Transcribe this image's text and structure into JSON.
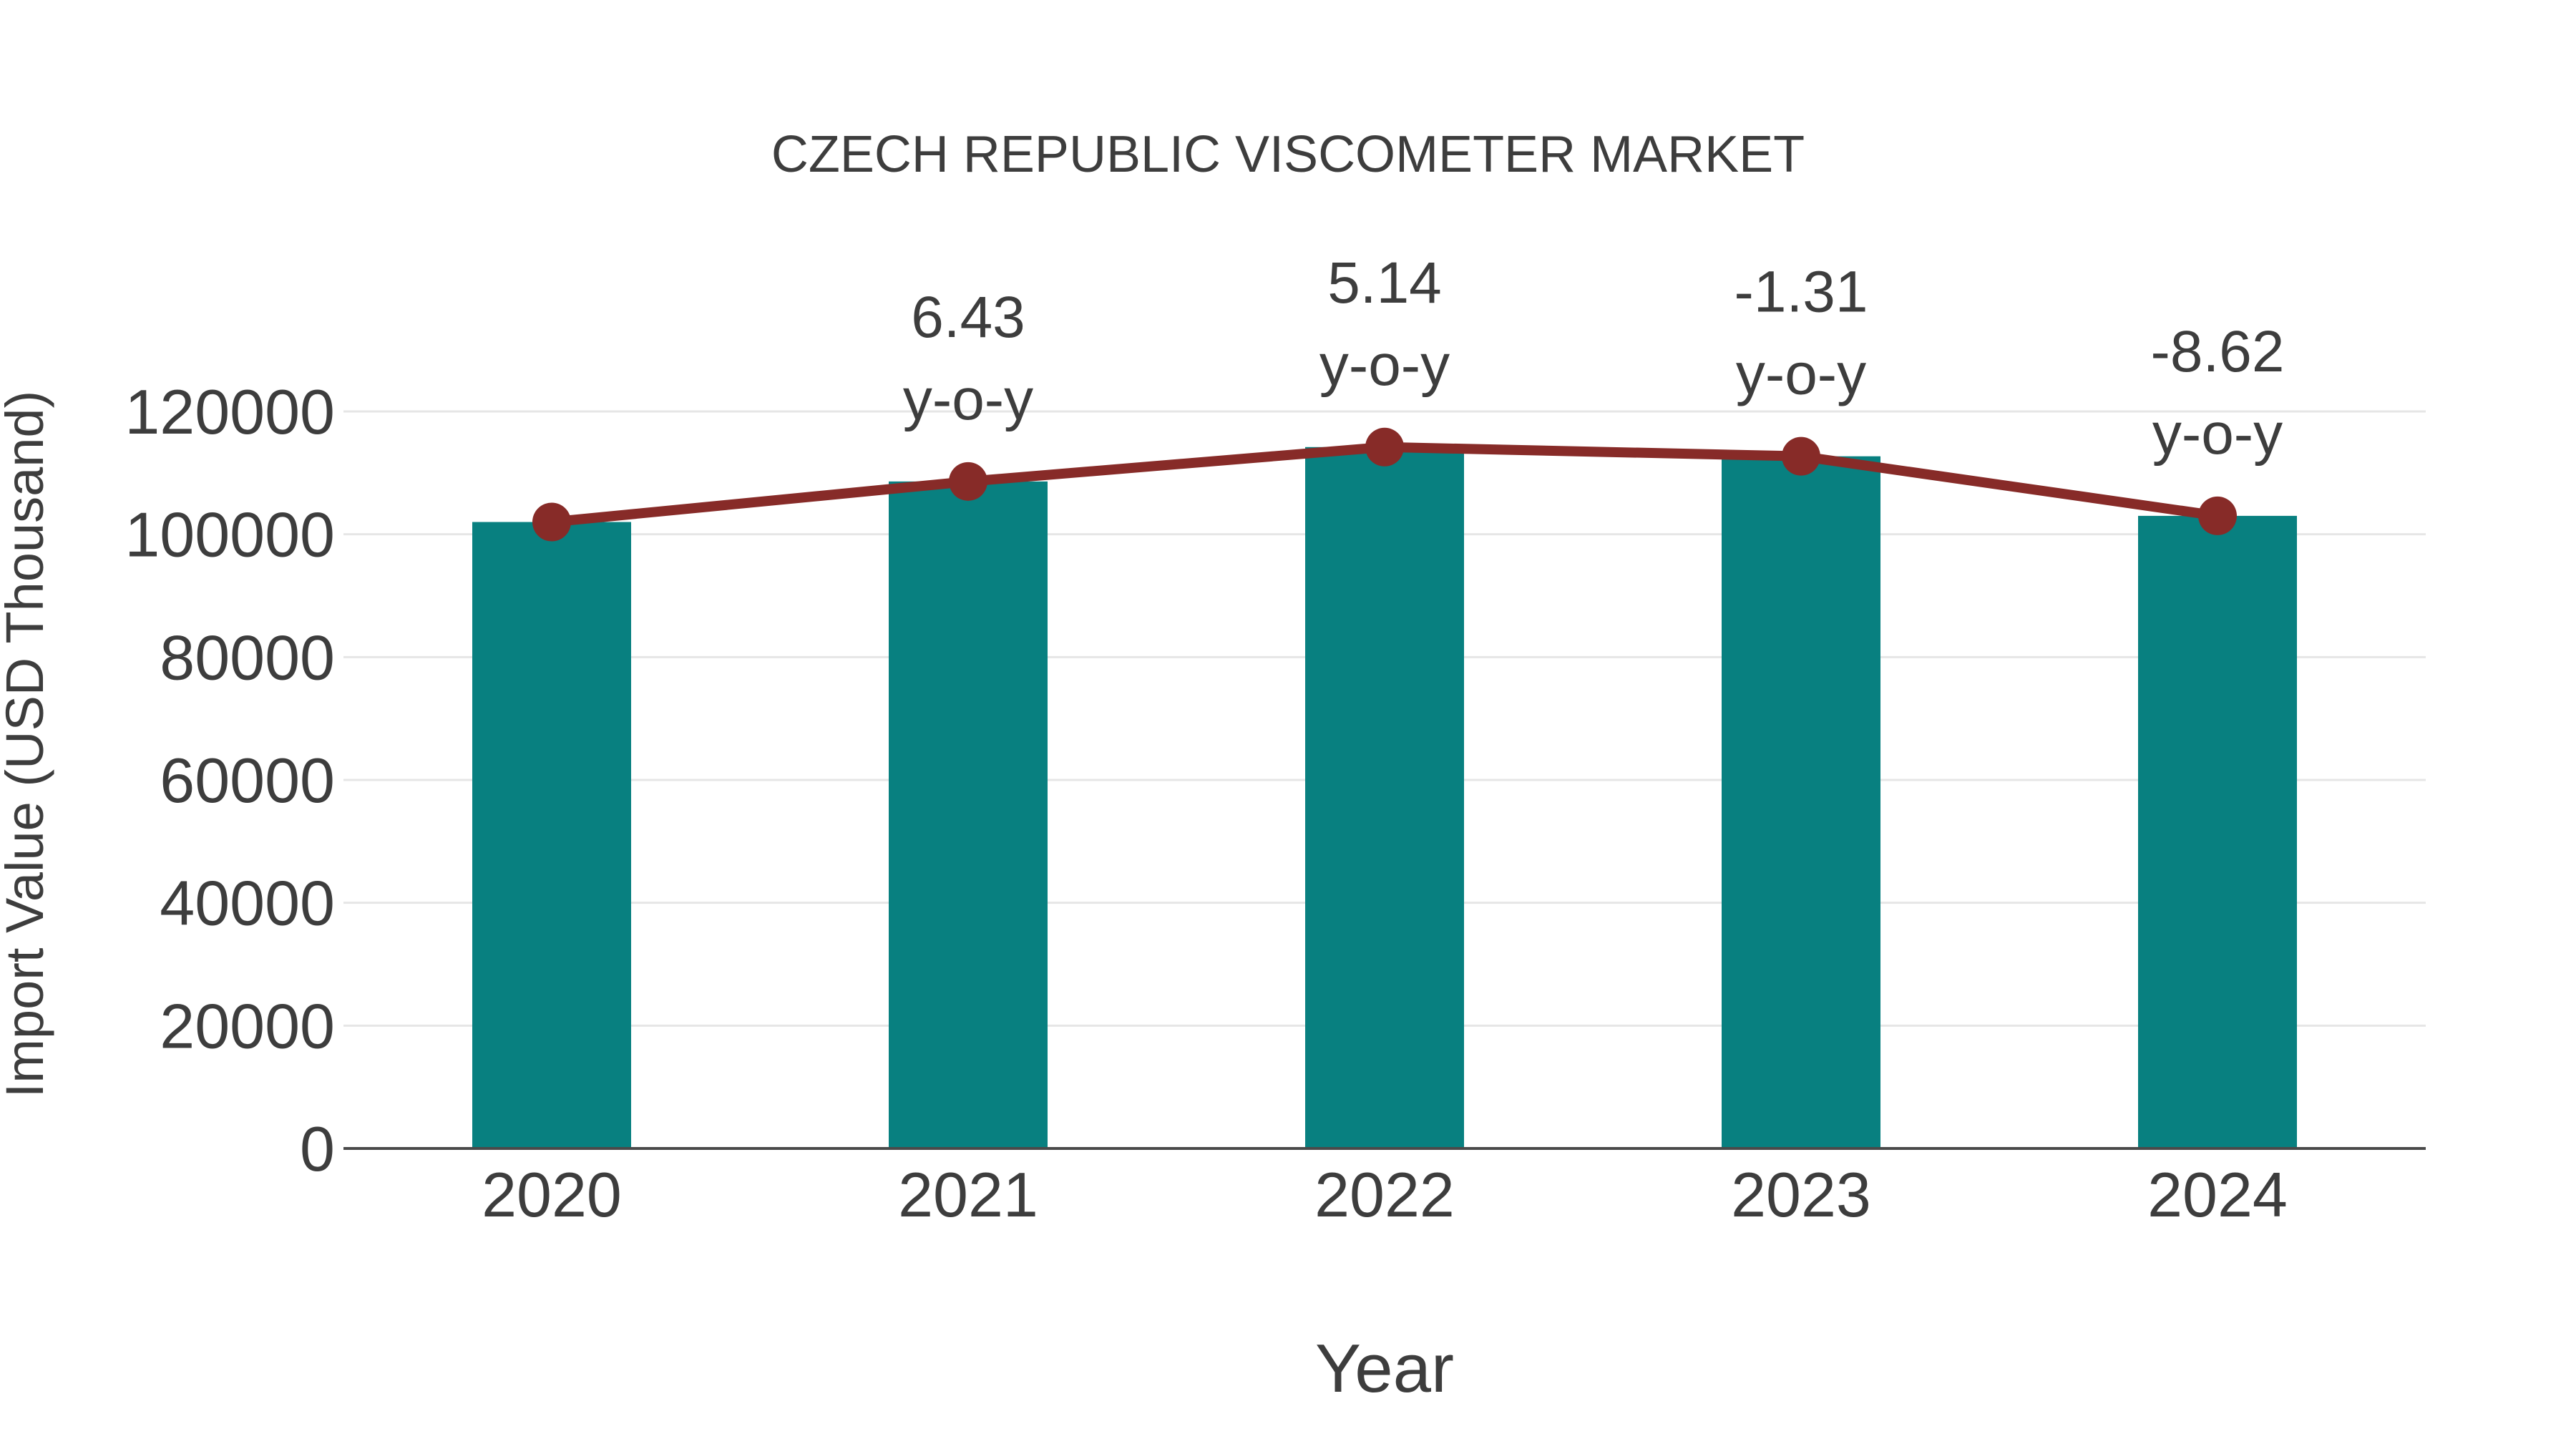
{
  "chart_data": {
    "type": "bar",
    "title": "CZECH REPUBLIC VISCOMETER MARKET",
    "xlabel": "Year",
    "ylabel": "Import Value (USD Thousand)",
    "categories": [
      "2020",
      "2021",
      "2022",
      "2023",
      "2024"
    ],
    "series": [
      {
        "name": "import-value-bars",
        "type": "bar",
        "color": "#088080",
        "values": [
          102000,
          108600,
          114200,
          112700,
          103000
        ]
      },
      {
        "name": "import-value-trend",
        "type": "line",
        "color": "#872b28",
        "values": [
          102000,
          108600,
          114200,
          112700,
          103000
        ]
      }
    ],
    "yoy_annotations": [
      {
        "category": "2021",
        "value": "6.43",
        "sublabel": "y-o-y"
      },
      {
        "category": "2022",
        "value": "5.14",
        "sublabel": "y-o-y"
      },
      {
        "category": "2023",
        "value": "-1.31",
        "sublabel": "y-o-y"
      },
      {
        "category": "2024",
        "value": "-8.62",
        "sublabel": "y-o-y"
      }
    ],
    "ylim": [
      0,
      120000
    ],
    "yticks": [
      0,
      20000,
      40000,
      60000,
      80000,
      100000,
      120000
    ],
    "grid": "horizontal",
    "legend": "none",
    "colors": {
      "bar": "#088080",
      "line": "#872b28",
      "text": "#3d3d3d",
      "gridline": "#e6e6e6",
      "axis": "#4a4a4a",
      "background": "#ffffff"
    }
  }
}
